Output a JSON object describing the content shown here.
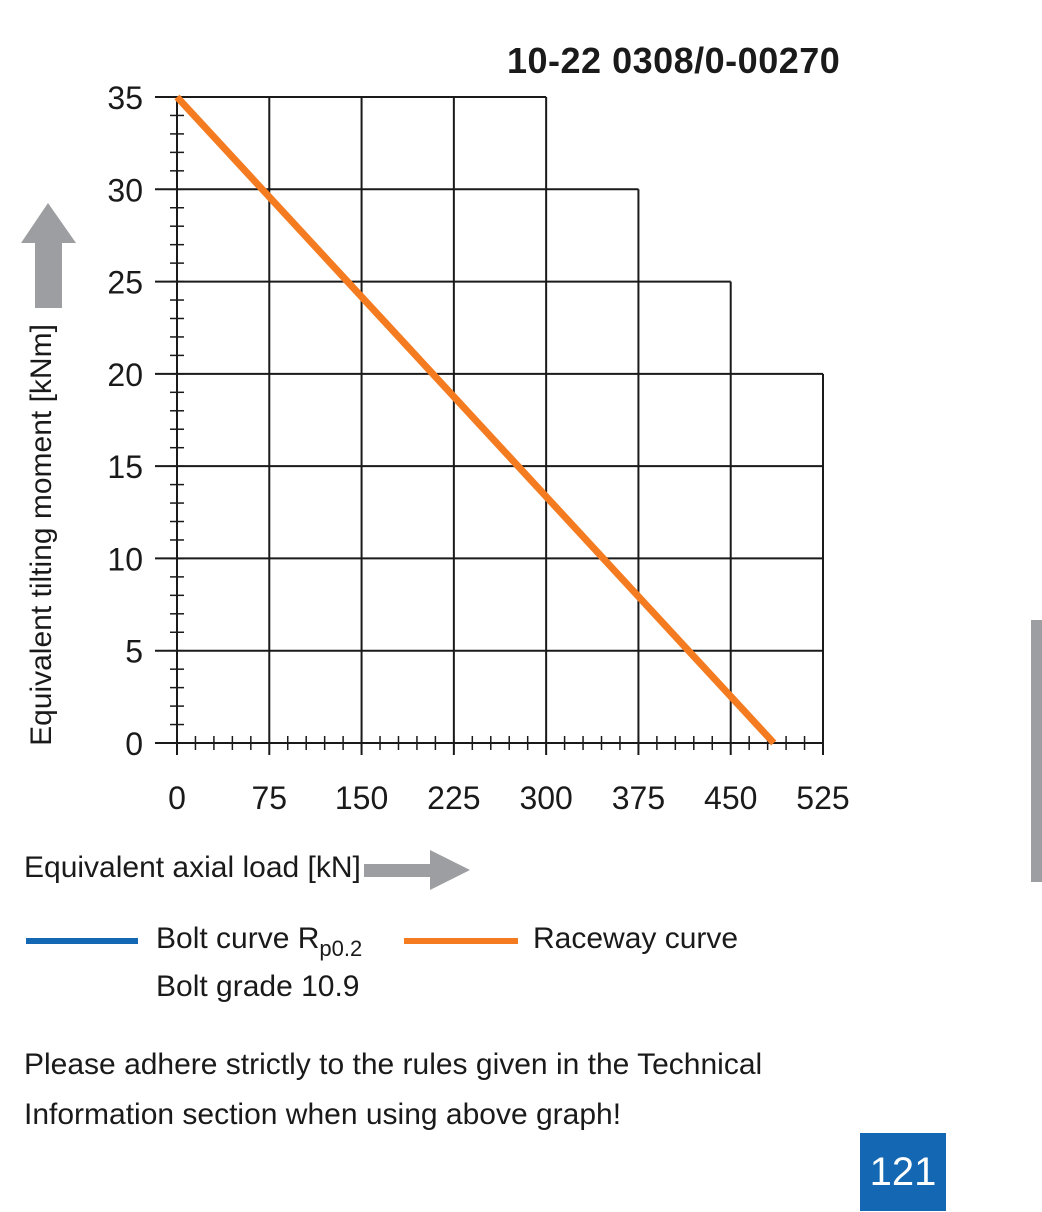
{
  "header": {
    "code": "10-22 0308/0-00270"
  },
  "chart_data": {
    "type": "line",
    "xlabel": "Equivalent axial load [kN]",
    "ylabel": "Equivalent tilting moment [kNm]",
    "xlim": [
      0,
      525
    ],
    "ylim": [
      0,
      35
    ],
    "x_ticks": [
      0,
      75,
      150,
      225,
      300,
      375,
      450,
      525
    ],
    "y_ticks": [
      0,
      5,
      10,
      15,
      20,
      25,
      30,
      35
    ],
    "grid": true,
    "grid_envelope": [
      {
        "x_max": 300,
        "y_from": 30,
        "y_to": 35
      },
      {
        "x_max": 375,
        "y_from": 25,
        "y_to": 30
      },
      {
        "x_max": 450,
        "y_from": 20,
        "y_to": 25
      },
      {
        "x_max": 525,
        "y_from": 0,
        "y_to": 20
      }
    ],
    "series": [
      {
        "name": "Raceway curve",
        "color": "#f47b20",
        "x": [
          0,
          485
        ],
        "y": [
          35,
          0
        ]
      }
    ]
  },
  "legend": {
    "bolt_label": "Bolt curve  R",
    "bolt_sub": "p0.2",
    "bolt_color": "#1467b3",
    "bolt_grade": "Bolt grade 10.9",
    "raceway_label": "Raceway curve",
    "raceway_color": "#f47b20"
  },
  "note": {
    "line1": "Please adhere strictly to the rules given in the Technical",
    "line2": "Information section when using above graph!"
  },
  "page": {
    "number": "121"
  },
  "colors": {
    "arrow": "#9c9ea1",
    "accent": "#1467b3"
  }
}
